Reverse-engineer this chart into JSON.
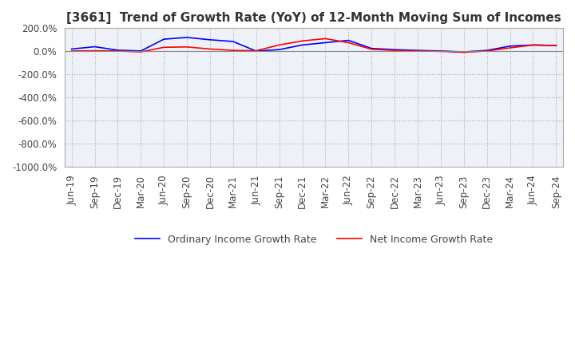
{
  "title": "[3661]  Trend of Growth Rate (YoY) of 12-Month Moving Sum of Incomes",
  "x_labels": [
    "Jun-19",
    "Sep-19",
    "Dec-19",
    "Mar-20",
    "Jun-20",
    "Sep-20",
    "Dec-20",
    "Mar-21",
    "Jun-21",
    "Sep-21",
    "Dec-21",
    "Mar-22",
    "Jun-22",
    "Sep-22",
    "Dec-22",
    "Mar-23",
    "Jun-23",
    "Sep-23",
    "Dec-23",
    "Mar-24",
    "Jun-24",
    "Sep-24"
  ],
  "ordinary_income": [
    20,
    40,
    10,
    3,
    105,
    120,
    100,
    85,
    2,
    15,
    55,
    75,
    95,
    25,
    15,
    8,
    3,
    -5,
    8,
    45,
    55,
    50
  ],
  "net_income": [
    3,
    5,
    3,
    -5,
    35,
    38,
    20,
    8,
    5,
    55,
    90,
    110,
    75,
    18,
    8,
    3,
    0,
    -8,
    3,
    30,
    55,
    50
  ],
  "line_color_ordinary": "#0000FF",
  "line_color_net": "#FF0000",
  "ylim_min": -1000,
  "ylim_max": 200,
  "yticks": [
    200,
    0,
    -200,
    -400,
    -600,
    -800,
    -1000
  ],
  "background_color": "#ffffff",
  "plot_bg_color": "#eef2f8",
  "grid_color": "#aaaaaa",
  "legend_ordinary": "Ordinary Income Growth Rate",
  "legend_net": "Net Income Growth Rate",
  "title_fontsize": 11,
  "tick_fontsize": 8.5
}
